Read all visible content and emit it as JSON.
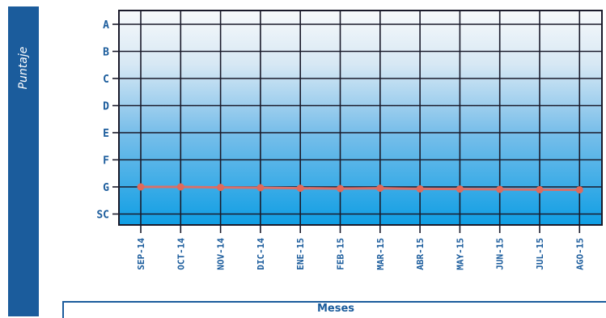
{
  "chart_data": {
    "type": "line",
    "ylabel": "Puntaje",
    "xlabel": "Meses",
    "categories": [
      "SEP-14",
      "OCT-14",
      "NOV-14",
      "DIC-14",
      "ENE-15",
      "FEB-15",
      "MAR-15",
      "ABR-15",
      "MAY-15",
      "JUN-15",
      "JUL-15",
      "AGO-15"
    ],
    "y_levels": [
      "A",
      "B",
      "C",
      "D",
      "E",
      "F",
      "G",
      "SC"
    ],
    "series": [
      {
        "values": [
          "G",
          "G",
          "G",
          "G",
          "G",
          "G",
          "G",
          "G",
          "G",
          "G",
          "G",
          "G"
        ]
      }
    ],
    "grid": true,
    "colors": {
      "line": "#d7706a",
      "point": "#e06a5a",
      "grid": "#1a1a2a",
      "text": "#1b5c9c",
      "bar": "#1b5c9c"
    }
  }
}
